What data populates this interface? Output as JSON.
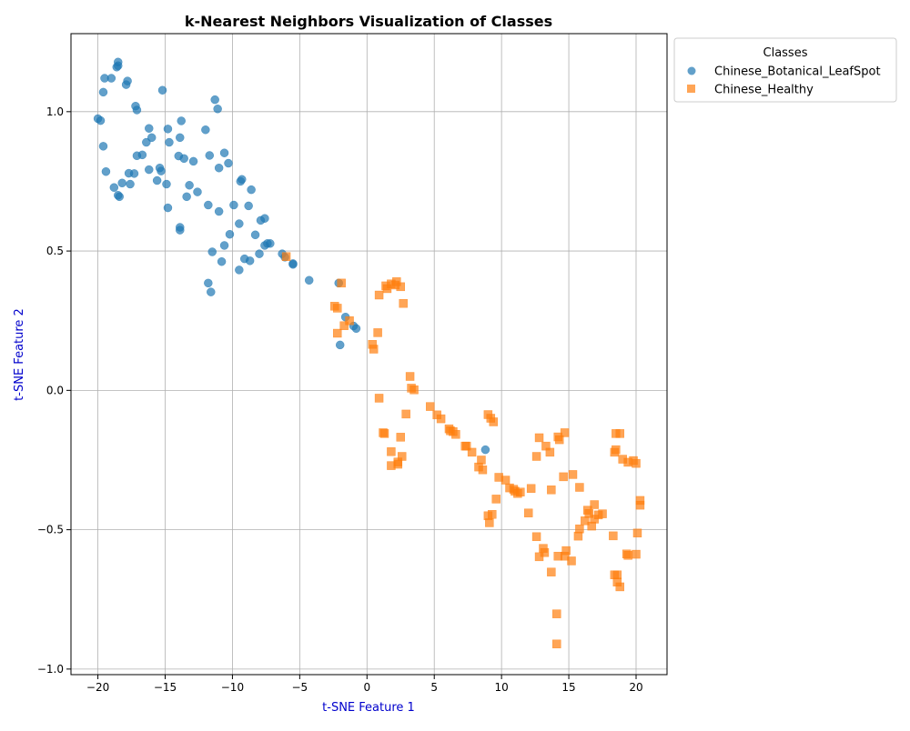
{
  "chart_data": {
    "type": "scatter",
    "title": "k-Nearest Neighbors Visualization of Classes",
    "xlabel": "t-SNE Feature 1",
    "ylabel": "t-SNE Feature 2",
    "xlim": [
      -22,
      22.3
    ],
    "ylim": [
      -1.02,
      1.28
    ],
    "xticks": [
      -20,
      -15,
      -10,
      -5,
      0,
      5,
      10,
      15,
      20
    ],
    "yticks": [
      -1.0,
      -0.5,
      0.0,
      0.5,
      1.0
    ],
    "xtick_labels": [
      "−20",
      "−15",
      "−10",
      "−5",
      "0",
      "5",
      "10",
      "15",
      "20"
    ],
    "ytick_labels": [
      "−1.0",
      "−0.5",
      "0.0",
      "0.5",
      "1.0"
    ],
    "grid": true,
    "axis_label_color": "#0000cc",
    "legend": {
      "title": "Classes",
      "placement": "outside-top-right"
    },
    "series": [
      {
        "name": "Chinese_Botanical_LeafSpot",
        "marker": "circle",
        "color": "#1f77b4",
        "points": [
          [
            -20,
            0.975
          ],
          [
            -19.8,
            0.968
          ],
          [
            -19.5,
            1.12
          ],
          [
            -19.6,
            1.07
          ],
          [
            -19.6,
            0.876
          ],
          [
            -19.4,
            0.785
          ],
          [
            -19,
            1.12
          ],
          [
            -18.8,
            0.728
          ],
          [
            -18.6,
            1.16
          ],
          [
            -18.5,
            1.178
          ],
          [
            -18.5,
            1.165
          ],
          [
            -18.5,
            0.7
          ],
          [
            -18.4,
            0.695
          ],
          [
            -18.2,
            0.744
          ],
          [
            -17.9,
            1.097
          ],
          [
            -17.8,
            1.11
          ],
          [
            -17.7,
            0.779
          ],
          [
            -17.6,
            0.74
          ],
          [
            -17.3,
            0.778
          ],
          [
            -17.2,
            1.02
          ],
          [
            -17.1,
            1.006
          ],
          [
            -17.1,
            0.842
          ],
          [
            -16.7,
            0.845
          ],
          [
            -16.4,
            0.89
          ],
          [
            -16.2,
            0.94
          ],
          [
            -16.2,
            0.792
          ],
          [
            -16,
            0.907
          ],
          [
            -15.6,
            0.753
          ],
          [
            -15.4,
            0.798
          ],
          [
            -15.3,
            0.787
          ],
          [
            -15.2,
            1.077
          ],
          [
            -14.9,
            0.74
          ],
          [
            -14.8,
            0.938
          ],
          [
            -14.8,
            0.655
          ],
          [
            -14.7,
            0.89
          ],
          [
            -14.0,
            0.841
          ],
          [
            -13.9,
            0.907
          ],
          [
            -13.8,
            0.967
          ],
          [
            -13.9,
            0.585
          ],
          [
            -13.9,
            0.575
          ],
          [
            -13.6,
            0.832
          ],
          [
            -13.4,
            0.695
          ],
          [
            -13.2,
            0.736
          ],
          [
            -12.9,
            0.822
          ],
          [
            -12.6,
            0.712
          ],
          [
            -12.0,
            0.935
          ],
          [
            -11.8,
            0.665
          ],
          [
            -11.7,
            0.843
          ],
          [
            -11.8,
            0.385
          ],
          [
            -11.6,
            0.353
          ],
          [
            -11.5,
            0.497
          ],
          [
            -11.3,
            1.043
          ],
          [
            -11.1,
            1.01
          ],
          [
            -11,
            0.798
          ],
          [
            -11,
            0.642
          ],
          [
            -10.8,
            0.462
          ],
          [
            -10.6,
            0.852
          ],
          [
            -10.6,
            0.52
          ],
          [
            -10.3,
            0.815
          ],
          [
            -10.2,
            0.56
          ],
          [
            -9.9,
            0.665
          ],
          [
            -9.5,
            0.598
          ],
          [
            -9.5,
            0.432
          ],
          [
            -9.4,
            0.75
          ],
          [
            -9.3,
            0.757
          ],
          [
            -9.1,
            0.472
          ],
          [
            -8.8,
            0.662
          ],
          [
            -8.7,
            0.465
          ],
          [
            -8.6,
            0.72
          ],
          [
            -8.3,
            0.558
          ],
          [
            -8,
            0.49
          ],
          [
            -7.9,
            0.61
          ],
          [
            -7.6,
            0.52
          ],
          [
            -7.6,
            0.617
          ],
          [
            -7.4,
            0.527
          ],
          [
            -7.2,
            0.527
          ],
          [
            -6.3,
            0.49
          ],
          [
            -6.1,
            0.478
          ],
          [
            -5.5,
            0.455
          ],
          [
            -5.5,
            0.452
          ],
          [
            -4.3,
            0.395
          ],
          [
            -2.1,
            0.385
          ],
          [
            -2.0,
            0.163
          ],
          [
            -1.6,
            0.263
          ],
          [
            -1.0,
            0.231
          ],
          [
            -0.8,
            0.222
          ],
          [
            8.8,
            -0.213
          ]
        ]
      },
      {
        "name": "Chinese_Healthy",
        "marker": "square",
        "color": "#ff7f0e",
        "points": [
          [
            -6.0,
            0.48
          ],
          [
            -2.4,
            0.302
          ],
          [
            -2.2,
            0.295
          ],
          [
            -2.2,
            0.205
          ],
          [
            -1.9,
            0.385
          ],
          [
            -1.7,
            0.232
          ],
          [
            -1.3,
            0.25
          ],
          [
            0.4,
            0.165
          ],
          [
            0.5,
            0.148
          ],
          [
            0.8,
            0.207
          ],
          [
            0.9,
            0.342
          ],
          [
            0.9,
            -0.028
          ],
          [
            1.2,
            -0.152
          ],
          [
            1.3,
            -0.155
          ],
          [
            1.4,
            0.375
          ],
          [
            1.5,
            0.365
          ],
          [
            1.8,
            0.382
          ],
          [
            1.8,
            -0.22
          ],
          [
            1.8,
            -0.27
          ],
          [
            2.1,
            0.378
          ],
          [
            2.2,
            0.39
          ],
          [
            2.3,
            -0.257
          ],
          [
            2.3,
            -0.265
          ],
          [
            2.5,
            0.372
          ],
          [
            2.5,
            -0.168
          ],
          [
            2.6,
            -0.237
          ],
          [
            2.7,
            0.312
          ],
          [
            2.9,
            -0.085
          ],
          [
            3.2,
            0.05
          ],
          [
            3.3,
            0.008
          ],
          [
            3.5,
            0.002
          ],
          [
            4.7,
            -0.058
          ],
          [
            5.2,
            -0.088
          ],
          [
            5.5,
            -0.102
          ],
          [
            6.1,
            -0.138
          ],
          [
            6.2,
            -0.145
          ],
          [
            6.4,
            -0.148
          ],
          [
            6.6,
            -0.158
          ],
          [
            7.3,
            -0.2
          ],
          [
            7.4,
            -0.2
          ],
          [
            7.8,
            -0.222
          ],
          [
            8.3,
            -0.275
          ],
          [
            8.5,
            -0.25
          ],
          [
            8.6,
            -0.285
          ],
          [
            9.0,
            -0.087
          ],
          [
            9.2,
            -0.1
          ],
          [
            9.4,
            -0.113
          ],
          [
            9.0,
            -0.45
          ],
          [
            9.1,
            -0.475
          ],
          [
            9.3,
            -0.445
          ],
          [
            9.6,
            -0.39
          ],
          [
            9.8,
            -0.312
          ],
          [
            10.3,
            -0.322
          ],
          [
            10.6,
            -0.35
          ],
          [
            10.9,
            -0.355
          ],
          [
            11.0,
            -0.362
          ],
          [
            11.2,
            -0.37
          ],
          [
            11.4,
            -0.365
          ],
          [
            12.0,
            -0.44
          ],
          [
            12.2,
            -0.352
          ],
          [
            12.6,
            -0.237
          ],
          [
            12.6,
            -0.525
          ],
          [
            12.8,
            -0.17
          ],
          [
            12.8,
            -0.597
          ],
          [
            13.1,
            -0.567
          ],
          [
            13.2,
            -0.582
          ],
          [
            13.3,
            -0.2
          ],
          [
            13.6,
            -0.222
          ],
          [
            13.7,
            -0.357
          ],
          [
            13.7,
            -0.652
          ],
          [
            14.1,
            -0.802
          ],
          [
            14.1,
            -0.91
          ],
          [
            14.2,
            -0.167
          ],
          [
            14.3,
            -0.177
          ],
          [
            14.2,
            -0.595
          ],
          [
            14.6,
            -0.31
          ],
          [
            14.7,
            -0.152
          ],
          [
            14.7,
            -0.595
          ],
          [
            14.8,
            -0.575
          ],
          [
            15.2,
            -0.612
          ],
          [
            15.3,
            -0.302
          ],
          [
            15.7,
            -0.523
          ],
          [
            15.8,
            -0.348
          ],
          [
            15.8,
            -0.497
          ],
          [
            16.2,
            -0.468
          ],
          [
            16.4,
            -0.43
          ],
          [
            16.5,
            -0.442
          ],
          [
            16.7,
            -0.487
          ],
          [
            16.9,
            -0.41
          ],
          [
            16.9,
            -0.462
          ],
          [
            17.2,
            -0.447
          ],
          [
            17.5,
            -0.443
          ],
          [
            18.3,
            -0.522
          ],
          [
            18.4,
            -0.222
          ],
          [
            18.4,
            -0.662
          ],
          [
            18.5,
            -0.213
          ],
          [
            18.5,
            -0.155
          ],
          [
            18.6,
            -0.688
          ],
          [
            18.6,
            -0.662
          ],
          [
            18.8,
            -0.155
          ],
          [
            18.8,
            -0.705
          ],
          [
            19.0,
            -0.247
          ],
          [
            19.3,
            -0.587
          ],
          [
            19.4,
            -0.592
          ],
          [
            19.4,
            -0.258
          ],
          [
            19.8,
            -0.252
          ],
          [
            20.0,
            -0.262
          ],
          [
            20.0,
            -0.588
          ],
          [
            20.1,
            -0.512
          ],
          [
            20.3,
            -0.395
          ],
          [
            20.3,
            -0.412
          ]
        ]
      }
    ]
  }
}
